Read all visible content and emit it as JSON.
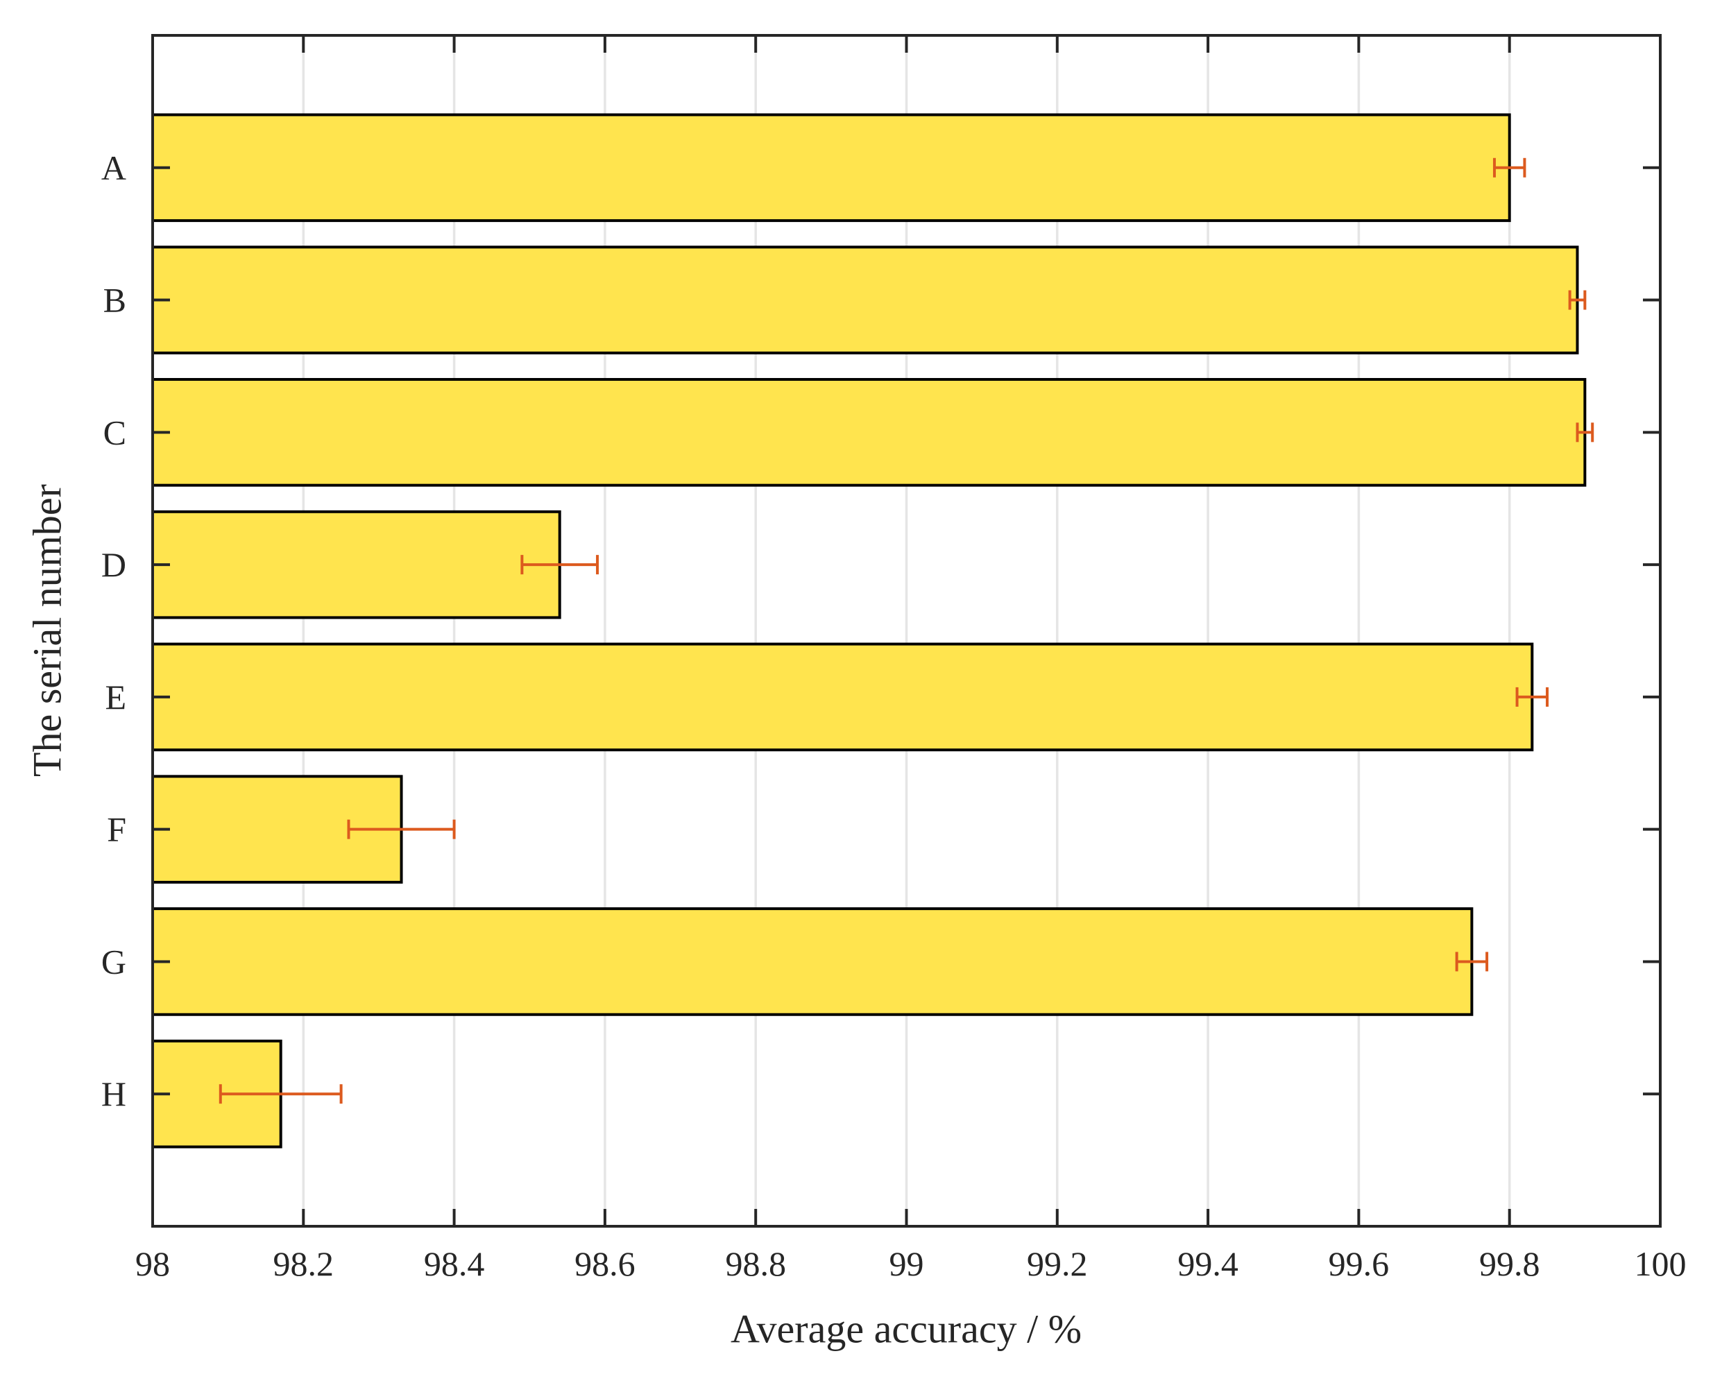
{
  "figure": {
    "background": "#ffffff"
  },
  "chart_data": {
    "type": "bar",
    "orientation": "horizontal",
    "title": "",
    "xlabel": "Average accuracy / %",
    "ylabel": "The serial number",
    "categories": [
      "A",
      "B",
      "C",
      "D",
      "E",
      "F",
      "G",
      "H"
    ],
    "values": [
      99.8,
      99.89,
      99.9,
      98.54,
      99.83,
      98.33,
      99.75,
      98.17
    ],
    "errors": [
      0.02,
      0.01,
      0.01,
      0.05,
      0.02,
      0.07,
      0.02,
      0.08
    ],
    "xlim": [
      98,
      100
    ],
    "xticks": [
      98,
      98.2,
      98.4,
      98.6,
      98.8,
      99,
      99.2,
      99.4,
      99.6,
      99.8,
      100
    ],
    "xtick_labels": [
      "98",
      "98.2",
      "98.4",
      "98.6",
      "98.8",
      "99",
      "99.2",
      "99.4",
      "99.6",
      "99.8",
      "100"
    ],
    "grid": true,
    "legend": null,
    "bar_color": "#ffe44e",
    "bar_edge_color": "#000000",
    "error_color": "#dc5a1e",
    "axis_color": "#262626",
    "grid_color": "#e5e5e5",
    "bar_width_fraction": 0.8
  }
}
